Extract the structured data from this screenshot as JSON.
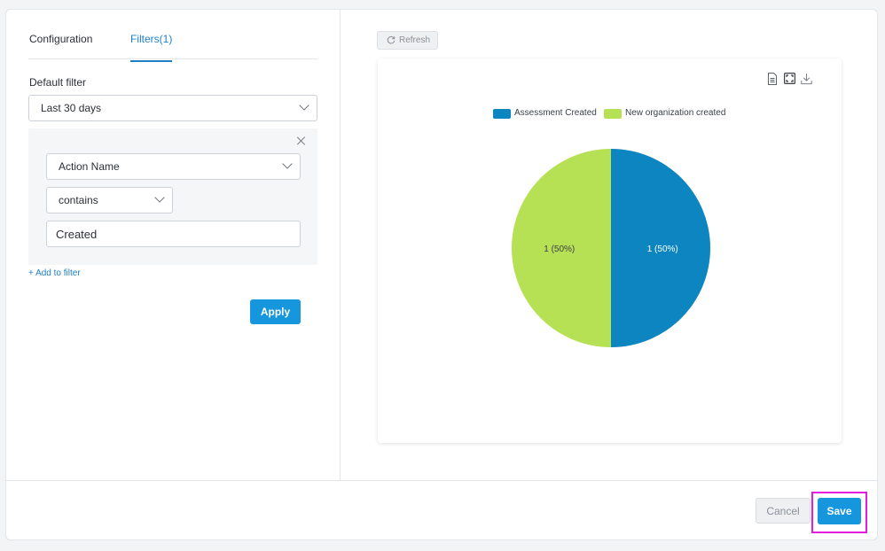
{
  "tabs": [
    {
      "label": "Configuration",
      "active": false
    },
    {
      "label": "Filters(1)",
      "active": true
    }
  ],
  "filter_panel": {
    "default_filter_label": "Default filter",
    "period_select": {
      "value": "Last 30 days"
    },
    "rule": {
      "field_select": {
        "value": "Action Name"
      },
      "operator_select": {
        "value": "contains"
      },
      "value_input": {
        "value": "Created"
      }
    },
    "add_filter_label": "+ Add to filter",
    "apply_label": "Apply"
  },
  "toolbar": {
    "refresh_label": "Refresh",
    "icons": [
      "document-icon",
      "fullscreen-icon",
      "download-icon"
    ]
  },
  "chart_data": {
    "type": "pie",
    "series": [
      {
        "name": "Assessment Created",
        "value": 1,
        "label": "1 (50%)",
        "color": "#0d85c1"
      },
      {
        "name": "New organization created",
        "value": 1,
        "label": "1 (50%)",
        "color": "#b7e154"
      }
    ],
    "legend_position": "top-center"
  },
  "footer": {
    "cancel_label": "Cancel",
    "save_label": "Save"
  },
  "colors": {
    "accent": "#1596dd",
    "highlight": "#e41ce0"
  }
}
